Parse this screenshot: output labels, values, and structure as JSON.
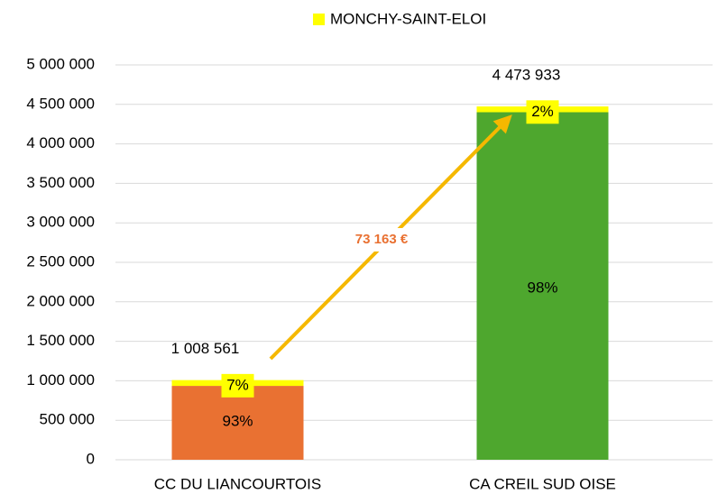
{
  "chart_data": {
    "type": "stacked_bar",
    "categories": [
      "CC DU LIANCOURTOIS",
      "CA CREIL SUD OISE"
    ],
    "series": [
      {
        "name": null,
        "colors": [
          "#e97132",
          "#4ea72e"
        ],
        "values": [
          935398,
          4400770
        ],
        "value_labels": [
          "93%",
          "98%"
        ]
      },
      {
        "name": "MONCHY-SAINT-ELOI",
        "color": "#ffff00",
        "values": [
          73163,
          73163
        ],
        "value_labels": [
          "7%",
          "2%"
        ]
      }
    ],
    "totals": [
      {
        "value": 1008561,
        "label": "1 008 561"
      },
      {
        "value": 4473933,
        "label": "4 473 933"
      }
    ],
    "annotation": "73 163 €",
    "ylim": [
      0,
      5000000
    ],
    "yticks": [
      0,
      {
        "value": 500000,
        "label": "500 000"
      },
      {
        "value": 1000000,
        "label": "1 000 000"
      },
      {
        "value": 1500000,
        "label": "1 500 000"
      },
      {
        "value": 2000000,
        "label": "2 000 000"
      },
      {
        "value": 2500000,
        "label": "2 500 000"
      },
      {
        "value": 3000000,
        "label": "3 000 000"
      },
      {
        "value": 3500000,
        "label": "3 500 000"
      },
      {
        "value": 4000000,
        "label": "4 000 000"
      },
      {
        "value": 4500000,
        "label": "4 500 000"
      },
      {
        "value": 5000000,
        "label": "5 000 000"
      }
    ],
    "grid": true,
    "legend": "top"
  }
}
